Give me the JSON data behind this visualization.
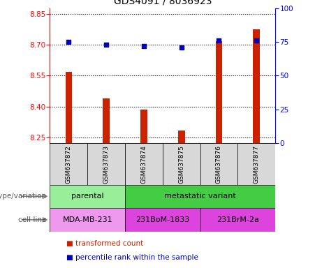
{
  "title": "GDS4091 / 8036923",
  "samples": [
    "GSM637872",
    "GSM637873",
    "GSM637874",
    "GSM637875",
    "GSM637876",
    "GSM637877"
  ],
  "bar_values": [
    8.57,
    8.44,
    8.385,
    8.282,
    8.72,
    8.775
  ],
  "percentile_values": [
    75,
    73,
    72,
    71,
    76,
    76
  ],
  "ylim_left": [
    8.22,
    8.88
  ],
  "ylim_right": [
    0,
    100
  ],
  "yticks_left": [
    8.25,
    8.4,
    8.55,
    8.7,
    8.85
  ],
  "yticks_right": [
    0,
    25,
    50,
    75,
    100
  ],
  "bar_color": "#cc2200",
  "dot_color": "#0000bb",
  "sample_bg_color": "#d8d8d8",
  "genotype_groups": [
    {
      "label": "parental",
      "start": 0,
      "end": 2,
      "color": "#99ee99"
    },
    {
      "label": "metastatic variant",
      "start": 2,
      "end": 6,
      "color": "#44cc44"
    }
  ],
  "cell_line_groups": [
    {
      "label": "MDA-MB-231",
      "start": 0,
      "end": 2,
      "color": "#ee99ee"
    },
    {
      "label": "231BoM-1833",
      "start": 2,
      "end": 4,
      "color": "#dd44dd"
    },
    {
      "label": "231BrM-2a",
      "start": 4,
      "end": 6,
      "color": "#dd44dd"
    }
  ],
  "legend_items": [
    {
      "color": "#cc2200",
      "label": "transformed count"
    },
    {
      "color": "#0000bb",
      "label": "percentile rank within the sample"
    }
  ],
  "genotype_label": "genotype/variation",
  "cellline_label": "cell line",
  "bar_width": 0.18,
  "title_fontsize": 10
}
